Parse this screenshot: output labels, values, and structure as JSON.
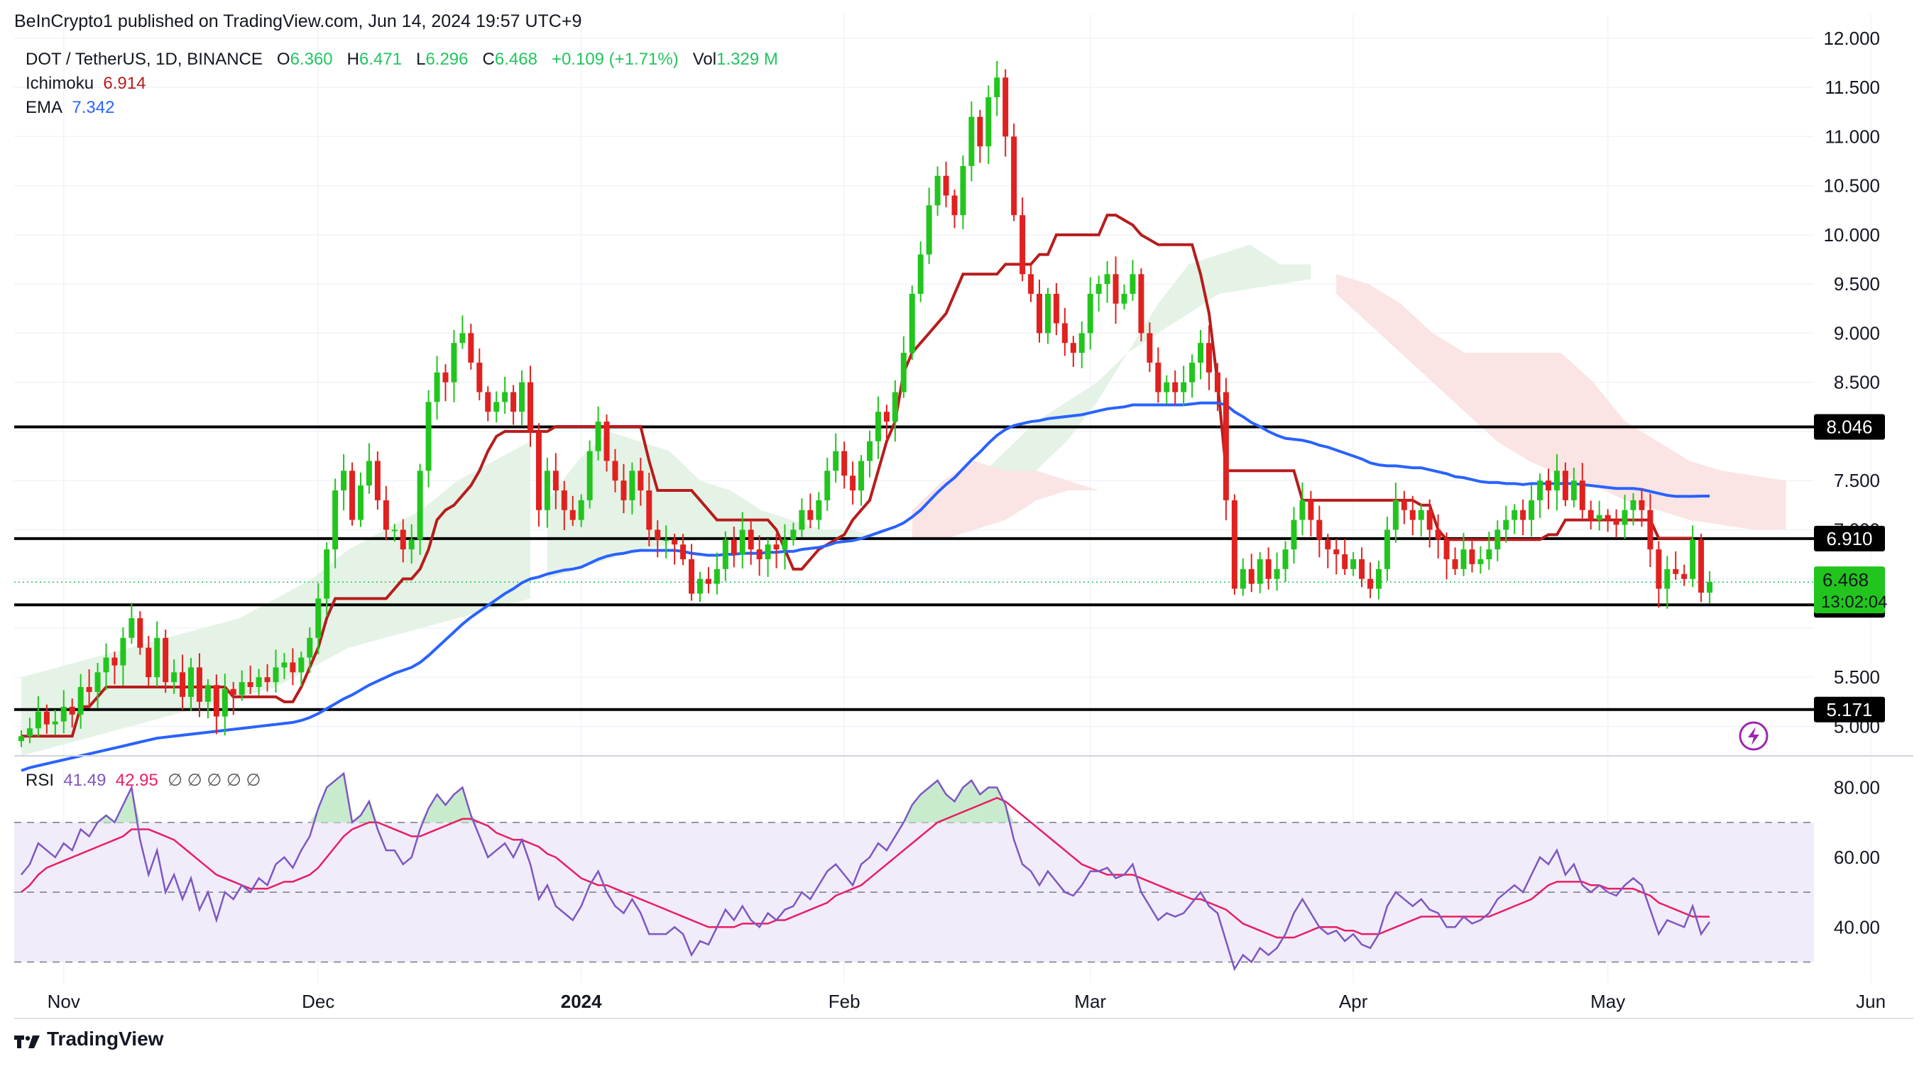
{
  "header": {
    "publisher": "BeInCrypto1 published on TradingView.com, Jun 14, 2024 19:57 UTC+9",
    "symbol": "DOT / TetherUS, 1D, BINANCE",
    "o_label": "O",
    "o_value": "6.360",
    "h_label": "H",
    "h_value": "6.471",
    "l_label": "L",
    "l_value": "6.296",
    "c_label": "C",
    "c_value": "6.468",
    "change": "+0.109 (+1.71%)",
    "vol_label": "Vol",
    "vol_value": "1.329 M"
  },
  "indicators": {
    "ichimoku_label": "Ichimoku",
    "ichimoku_value": "6.914",
    "ema_label": "EMA",
    "ema_value": "7.342",
    "rsi_label": "RSI",
    "rsi_value": "41.49",
    "rsi_ma_value": "42.95"
  },
  "colors": {
    "bull": "#22c51e",
    "bear": "#e0211f",
    "kijun": "#b71c1c",
    "ema": "#2962ff",
    "cloud_bull": "#e4f3e6",
    "cloud_bear": "#fbe4e4",
    "rsi": "#7e57c2",
    "rsi_ma": "#e91e63"
  },
  "price_axis": {
    "labels": [
      "12.000",
      "11.500",
      "11.000",
      "10.500",
      "10.000",
      "9.500",
      "9.000",
      "8.500",
      "8.046",
      "7.500",
      "7.000",
      "6.910",
      "6.468",
      "13:02:04",
      "6.236",
      "5.500",
      "5.171",
      "5.000"
    ]
  },
  "levels": [
    8.046,
    6.91,
    6.236,
    5.171
  ],
  "current": {
    "price": "6.468",
    "countdown": "13:02:04"
  },
  "rsi_axis": {
    "labels": [
      "80.00",
      "60.00",
      "40.00"
    ]
  },
  "time_axis": {
    "labels": [
      "Nov",
      "Dec",
      "2024",
      "Feb",
      "Mar",
      "Apr",
      "May",
      "Jun"
    ]
  },
  "brand": {
    "name": "TradingView"
  },
  "chart_data": {
    "type": "candlestick",
    "symbol": "DOT / TetherUS",
    "timeframe": "1D",
    "exchange": "BINANCE",
    "ylim": [
      4.7,
      12.1
    ],
    "rsi_ylim": [
      24,
      86
    ],
    "first_date": "2023-10-27",
    "closes": [
      4.9,
      4.98,
      5.15,
      5.02,
      5.05,
      5.2,
      5.12,
      5.4,
      5.35,
      5.55,
      5.7,
      5.62,
      5.9,
      6.1,
      5.8,
      5.5,
      5.9,
      5.45,
      5.55,
      5.3,
      5.6,
      5.25,
      5.42,
      5.1,
      5.38,
      5.32,
      5.45,
      5.4,
      5.5,
      5.45,
      5.6,
      5.65,
      5.55,
      5.7,
      5.9,
      6.3,
      6.8,
      7.4,
      7.6,
      7.1,
      7.45,
      7.7,
      7.3,
      7.0,
      7.0,
      6.8,
      6.9,
      7.6,
      8.3,
      8.6,
      8.5,
      8.9,
      9.0,
      8.7,
      8.4,
      8.2,
      8.3,
      8.4,
      8.2,
      8.5,
      8.0,
      7.2,
      7.6,
      7.4,
      7.2,
      7.1,
      7.3,
      7.8,
      8.1,
      7.7,
      7.5,
      7.3,
      7.6,
      7.4,
      7.0,
      6.9,
      6.9,
      6.85,
      6.7,
      6.35,
      6.5,
      6.45,
      6.6,
      6.9,
      6.75,
      7.0,
      6.8,
      6.7,
      6.85,
      6.8,
      6.9,
      7.0,
      7.2,
      7.1,
      7.3,
      7.6,
      7.8,
      7.55,
      7.4,
      7.7,
      7.9,
      8.2,
      8.1,
      8.4,
      8.8,
      9.4,
      9.8,
      10.3,
      10.6,
      10.4,
      10.2,
      10.7,
      11.2,
      10.9,
      11.4,
      11.6,
      11.0,
      10.2,
      9.6,
      9.4,
      9.0,
      9.4,
      9.1,
      8.9,
      8.8,
      9.0,
      9.4,
      9.5,
      9.6,
      9.3,
      9.4,
      9.6,
      9.0,
      8.7,
      8.4,
      8.5,
      8.4,
      8.5,
      8.7,
      8.9,
      8.6,
      8.4,
      7.3,
      6.4,
      6.6,
      6.45,
      6.7,
      6.5,
      6.6,
      6.8,
      7.1,
      7.3,
      7.1,
      6.9,
      6.8,
      6.75,
      6.6,
      6.7,
      6.5,
      6.4,
      6.6,
      7.0,
      7.3,
      7.2,
      7.1,
      7.2,
      7.0,
      6.9,
      6.7,
      6.6,
      6.8,
      6.65,
      6.7,
      6.8,
      7.0,
      7.1,
      7.2,
      7.1,
      7.3,
      7.5,
      7.4,
      7.6,
      7.3,
      7.5,
      7.2,
      7.1,
      7.15,
      7.1,
      7.05,
      7.2,
      7.3,
      7.2,
      6.8,
      6.4,
      6.6,
      6.55,
      6.5,
      6.9,
      6.36,
      6.47
    ],
    "kijun": [
      4.9,
      4.9,
      4.9,
      4.9,
      4.9,
      4.9,
      4.9,
      5.2,
      5.2,
      5.3,
      5.4,
      5.4,
      5.4,
      5.4,
      5.4,
      5.4,
      5.4,
      5.4,
      5.4,
      5.4,
      5.4,
      5.4,
      5.4,
      5.4,
      5.4,
      5.3,
      5.3,
      5.3,
      5.3,
      5.3,
      5.3,
      5.25,
      5.25,
      5.4,
      5.6,
      5.8,
      6.1,
      6.3,
      6.3,
      6.3,
      6.3,
      6.3,
      6.3,
      6.3,
      6.4,
      6.5,
      6.5,
      6.6,
      6.8,
      7.1,
      7.2,
      7.25,
      7.35,
      7.45,
      7.6,
      7.8,
      7.95,
      8.0,
      8.0,
      8.0,
      8.0,
      8.0,
      8.0,
      8.05,
      8.05,
      8.05,
      8.05,
      8.05,
      8.05,
      8.05,
      8.05,
      8.05,
      8.05,
      8.05,
      7.7,
      7.4,
      7.4,
      7.4,
      7.4,
      7.4,
      7.3,
      7.2,
      7.1,
      7.1,
      7.1,
      7.1,
      7.1,
      7.1,
      7.1,
      7.0,
      6.8,
      6.6,
      6.6,
      6.7,
      6.8,
      6.85,
      6.9,
      6.95,
      7.1,
      7.2,
      7.3,
      7.6,
      7.9,
      8.1,
      8.6,
      8.8,
      8.9,
      9.0,
      9.1,
      9.2,
      9.4,
      9.6,
      9.6,
      9.6,
      9.6,
      9.6,
      9.7,
      9.7,
      9.7,
      9.7,
      9.8,
      9.8,
      10.0,
      10.0,
      10.0,
      10.0,
      10.0,
      10.0,
      10.2,
      10.2,
      10.15,
      10.1,
      10.0,
      9.95,
      9.9,
      9.9,
      9.9,
      9.9,
      9.9,
      9.6,
      9.2,
      8.5,
      7.6,
      7.6,
      7.6,
      7.6,
      7.6,
      7.6,
      7.6,
      7.6,
      7.6,
      7.3,
      7.3,
      7.3,
      7.3,
      7.3,
      7.3,
      7.3,
      7.3,
      7.3,
      7.3,
      7.3,
      7.3,
      7.3,
      7.3,
      7.25,
      7.25,
      7.0,
      6.9,
      6.9,
      6.9,
      6.9,
      6.9,
      6.9,
      6.9,
      6.9,
      6.9,
      6.9,
      6.9,
      6.9,
      6.95,
      6.95,
      7.1,
      7.1,
      7.1,
      7.1,
      7.1,
      7.1,
      7.1,
      7.1,
      7.1,
      7.1,
      7.1,
      6.914,
      6.914,
      6.914,
      6.914,
      6.914
    ],
    "ema": [
      4.55,
      4.58,
      4.6,
      4.62,
      4.64,
      4.66,
      4.68,
      4.7,
      4.72,
      4.74,
      4.76,
      4.78,
      4.8,
      4.82,
      4.84,
      4.86,
      4.88,
      4.89,
      4.9,
      4.91,
      4.92,
      4.93,
      4.94,
      4.95,
      4.96,
      4.97,
      4.98,
      4.99,
      5.0,
      5.01,
      5.02,
      5.03,
      5.04,
      5.06,
      5.09,
      5.13,
      5.18,
      5.23,
      5.28,
      5.32,
      5.37,
      5.42,
      5.46,
      5.5,
      5.54,
      5.57,
      5.6,
      5.65,
      5.72,
      5.8,
      5.88,
      5.96,
      6.04,
      6.11,
      6.17,
      6.23,
      6.29,
      6.35,
      6.4,
      6.46,
      6.5,
      6.52,
      6.55,
      6.57,
      6.59,
      6.6,
      6.62,
      6.66,
      6.7,
      6.73,
      6.75,
      6.76,
      6.78,
      6.79,
      6.79,
      6.79,
      6.79,
      6.79,
      6.78,
      6.76,
      6.75,
      6.74,
      6.74,
      6.75,
      6.75,
      6.76,
      6.76,
      6.76,
      6.77,
      6.77,
      6.78,
      6.78,
      6.8,
      6.81,
      6.82,
      6.84,
      6.87,
      6.88,
      6.89,
      6.91,
      6.94,
      6.97,
      7.0,
      7.03,
      7.07,
      7.13,
      7.2,
      7.29,
      7.38,
      7.46,
      7.53,
      7.62,
      7.71,
      7.79,
      7.88,
      7.96,
      8.02,
      8.06,
      8.08,
      8.1,
      8.11,
      8.13,
      8.14,
      8.15,
      8.16,
      8.17,
      8.19,
      8.21,
      8.23,
      8.24,
      8.25,
      8.27,
      8.27,
      8.27,
      8.27,
      8.27,
      8.27,
      8.27,
      8.28,
      8.29,
      8.29,
      8.29,
      8.27,
      8.2,
      8.15,
      8.09,
      8.05,
      8.0,
      7.96,
      7.93,
      7.92,
      7.91,
      7.89,
      7.86,
      7.84,
      7.81,
      7.78,
      7.75,
      7.72,
      7.68,
      7.66,
      7.65,
      7.65,
      7.64,
      7.63,
      7.63,
      7.61,
      7.59,
      7.57,
      7.54,
      7.53,
      7.51,
      7.49,
      7.48,
      7.48,
      7.47,
      7.47,
      7.46,
      7.47,
      7.47,
      7.47,
      7.47,
      7.47,
      7.47,
      7.46,
      7.45,
      7.44,
      7.43,
      7.42,
      7.42,
      7.42,
      7.41,
      7.39,
      7.37,
      7.35,
      7.34,
      7.34,
      7.34,
      7.342,
      7.342
    ],
    "cloud": [
      {
        "span": [
          0,
          60
        ],
        "sign": "bull",
        "top": [
          5.5,
          5.6,
          5.7,
          5.8,
          5.9,
          6.0,
          6.1,
          6.3,
          6.5,
          6.8,
          7.0,
          7.2,
          7.5,
          7.7,
          7.9
        ],
        "bottom": [
          4.7,
          4.8,
          4.9,
          5.0,
          5.1,
          5.2,
          5.3,
          5.4,
          5.6,
          5.8,
          5.9,
          6.0,
          6.1,
          6.2,
          6.3
        ]
      },
      {
        "span": [
          62,
          152
        ],
        "sign": "bull",
        "top": [
          7.3,
          7.7,
          8.0,
          7.9,
          7.8,
          7.5,
          7.4,
          7.2,
          7.1,
          7.0,
          7.0,
          6.9,
          6.9,
          7.0,
          7.1,
          7.3,
          7.6,
          7.9,
          8.3,
          8.8,
          9.3,
          9.7,
          9.8,
          9.9,
          9.7,
          9.7
        ],
        "bottom": [
          6.5,
          6.6,
          6.7,
          6.8,
          6.85,
          6.9,
          6.9,
          6.9,
          6.9,
          6.9,
          6.9,
          6.9,
          6.9,
          7.2,
          7.5,
          7.8,
          8.1,
          8.3,
          8.5,
          8.8,
          9.0,
          9.2,
          9.4,
          9.45,
          9.5,
          9.55
        ]
      },
      {
        "span": [
          155,
          208
        ],
        "sign": "bear",
        "top": [
          9.6,
          9.5,
          9.3,
          9.0,
          8.8,
          8.8,
          8.8,
          8.8,
          8.5,
          8.1,
          7.9,
          7.7,
          7.6,
          7.55,
          7.5
        ],
        "bottom": [
          9.4,
          9.1,
          8.8,
          8.5,
          8.2,
          7.9,
          7.7,
          7.55,
          7.45,
          7.3,
          7.2,
          7.1,
          7.05,
          7.0,
          7.0
        ]
      },
      {
        "span": [
          105,
          127
        ],
        "sign": "bear",
        "top": [
          7.2,
          7.5,
          7.7,
          7.6,
          7.6,
          7.5,
          7.4
        ],
        "bottom": [
          6.9,
          6.9,
          7.0,
          7.1,
          7.3,
          7.4,
          7.4
        ]
      }
    ],
    "rsi": [
      55,
      58,
      64,
      62,
      60,
      64,
      62,
      68,
      66,
      70,
      72,
      70,
      75,
      80,
      65,
      55,
      62,
      50,
      55,
      48,
      54,
      45,
      50,
      42,
      50,
      48,
      52,
      50,
      54,
      52,
      58,
      60,
      57,
      62,
      66,
      74,
      80,
      82,
      84,
      70,
      72,
      76,
      68,
      62,
      62,
      58,
      60,
      68,
      74,
      78,
      75,
      78,
      80,
      72,
      66,
      60,
      62,
      64,
      60,
      65,
      58,
      48,
      52,
      46,
      44,
      42,
      46,
      52,
      56,
      50,
      46,
      44,
      48,
      44,
      38,
      38,
      38,
      40,
      38,
      32,
      36,
      35,
      40,
      45,
      42,
      46,
      42,
      40,
      44,
      42,
      45,
      46,
      50,
      48,
      52,
      56,
      58,
      55,
      52,
      58,
      60,
      64,
      62,
      66,
      70,
      75,
      78,
      80,
      82,
      78,
      76,
      80,
      82,
      78,
      80,
      80,
      75,
      65,
      58,
      56,
      52,
      56,
      53,
      50,
      49,
      52,
      56,
      56,
      57,
      54,
      55,
      58,
      50,
      46,
      42,
      44,
      43,
      44,
      47,
      50,
      46,
      44,
      36,
      28,
      32,
      30,
      34,
      32,
      34,
      38,
      44,
      48,
      44,
      40,
      38,
      39,
      36,
      38,
      35,
      34,
      38,
      46,
      50,
      48,
      46,
      48,
      45,
      44,
      40,
      40,
      43,
      41,
      42,
      44,
      48,
      50,
      52,
      50,
      55,
      60,
      58,
      62,
      55,
      58,
      52,
      50,
      52,
      50,
      49,
      52,
      54,
      52,
      45,
      38,
      42,
      41,
      40,
      46,
      38,
      41.49
    ],
    "rsi_ma": [
      50,
      52,
      55,
      57,
      58,
      59,
      60,
      61,
      62,
      63,
      64,
      65,
      66,
      68,
      68,
      68,
      67,
      66,
      65,
      63,
      61,
      59,
      57,
      55,
      54,
      53,
      52,
      51,
      51,
      51,
      52,
      53,
      53,
      54,
      55,
      57,
      60,
      63,
      66,
      68,
      69,
      70,
      70,
      69,
      68,
      67,
      66,
      66,
      67,
      68,
      69,
      70,
      71,
      71,
      70,
      69,
      67,
      66,
      65,
      65,
      64,
      63,
      61,
      60,
      58,
      56,
      54,
      53,
      52,
      52,
      51,
      50,
      49,
      48,
      47,
      46,
      45,
      44,
      43,
      42,
      41,
      40,
      40,
      40,
      40,
      41,
      41,
      41,
      41,
      42,
      42,
      43,
      44,
      45,
      46,
      47,
      49,
      50,
      51,
      52,
      54,
      56,
      58,
      60,
      62,
      64,
      66,
      68,
      70,
      71,
      72,
      73,
      74,
      75,
      76,
      77,
      76,
      74,
      72,
      70,
      68,
      66,
      64,
      62,
      60,
      58,
      57,
      56,
      55,
      55,
      55,
      55,
      54,
      53,
      52,
      51,
      50,
      49,
      48,
      48,
      47,
      46,
      45,
      43,
      41,
      40,
      39,
      38,
      37,
      37,
      37,
      38,
      39,
      40,
      40,
      40,
      39,
      39,
      38,
      38,
      38,
      39,
      40,
      41,
      42,
      43,
      43,
      43,
      43,
      43,
      43,
      43,
      43,
      43,
      44,
      45,
      46,
      47,
      48,
      50,
      52,
      53,
      53,
      53,
      53,
      52,
      52,
      51,
      51,
      51,
      51,
      50,
      49,
      47,
      46,
      45,
      44,
      43,
      43,
      42.95
    ]
  }
}
